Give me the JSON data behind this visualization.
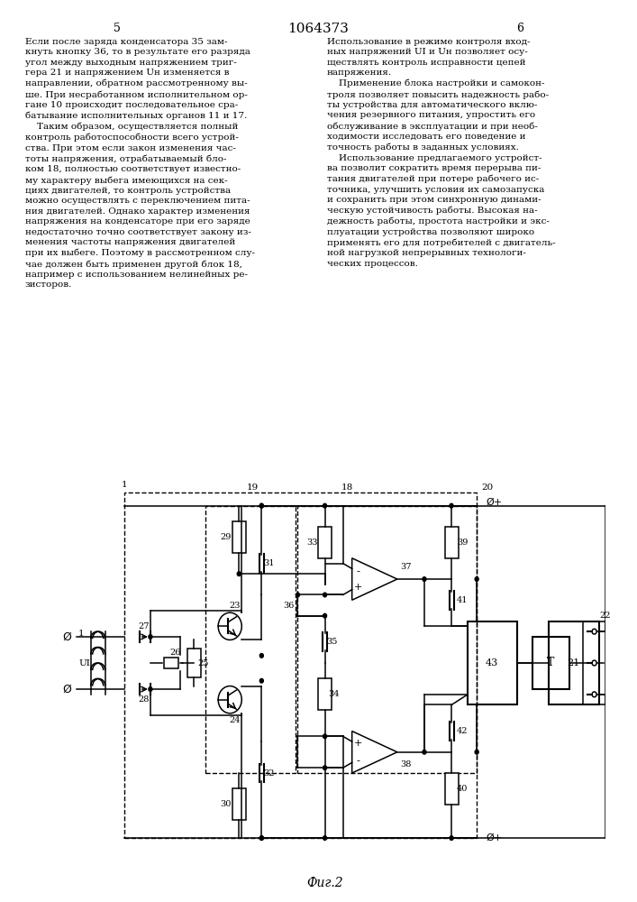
{
  "title": "1064373",
  "page_numbers": [
    "5",
    "6"
  ],
  "fig_label": "Фиг.2",
  "bg_color": "#ffffff",
  "line_color": "#000000",
  "text_color": "#000000",
  "diagram": {
    "left_text_col": "Если после заряда конденсатора 35 зам-\nкнуть кнопку 36, то в результате его разряда\nугол между выходным напряжением триг-\nгера 21 и напряжением Uн изменяется в\nнаправлении, обратном рассмотренному вы-\nше. При несработанном исполнительном ор-\nгане 10 происходит последовательное сра-\nбатывание исполнительных органов 11 и 17.\n    Таким образом, осуществляется полный\nконтроль работоспособности всего устрой-\nства. При этом если закон изменения час-\nтоты напряжения, отрабатываемый бло-\nком 18, полностью соответствует известно-\nму характеру выбега имеющихся на сек-\nциях двигателей, то контроль устройства\nможно осуществлять с переключением пита-\nния двигателей. Однако характер изменения\nнапряжения на конденсаторе при его заряде\nнедостаточно точно соответствует закону из-\nменения частоты напряжения двигателей\nпри их выбеге. Поэтому в рассмотренном слу-\nчае должен быть применен другой блок 18,\nнапример с использованием нелинейных ре-\nзисторов.",
    "right_text_col": "Использование в режиме контроля вход-\nных напряжений U1 и Uн позволяет осу-\nществлять контроль исправности цепей\nнапряжения.\n    Применение блока настройки и самокон-\nтроля позволяет повысить надежность рабо-\nты устройства для автоматического вклю-\nчения резервного питания, упростить его\nобслуживание в эксплуатации и при необ-\nходимости исследовать его поведение и\nточность работы в заданных условиях.\n    Использование предлагаемого устройст-\nва позволит сократить время перерыва пи-\nтания двигателей при потере рабочего ис-\nточника, улучшить условия их самозапуска\nи сохранить при этом синхронную динами-\nческую устойчивость работы. Высокая на-\nдежность работы, простота настройки и экс-\nплуатации устройства позволяют широко\nприменять его для потребителей с двигатель-\nной нагрузкой непрерывных технологи-\nческих процессов."
  }
}
